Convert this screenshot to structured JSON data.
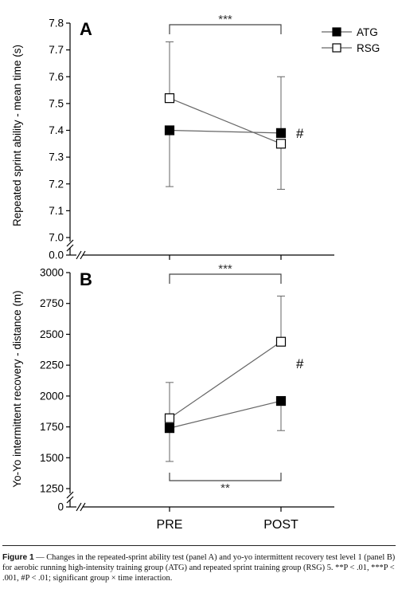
{
  "chart_data": [
    {
      "type": "line",
      "panel_label": "A",
      "ylabel": "Repeated sprint ability - mean time (s)",
      "categories": [
        "PRE",
        "POST"
      ],
      "ylim": [
        7.0,
        7.8
      ],
      "yticks": [
        "7.8",
        "7.7",
        "7.6",
        "7.5",
        "7.4",
        "7.3",
        "7.2",
        "7.1",
        "7.0"
      ],
      "ytick_values": [
        7.8,
        7.7,
        7.6,
        7.5,
        7.4,
        7.3,
        7.2,
        7.1,
        7.0
      ],
      "axis_break_zero_label": "0.0",
      "series": [
        {
          "name": "ATG",
          "marker": "filled-square",
          "values": [
            7.4,
            7.39
          ],
          "error_low": [
            7.19,
            null
          ],
          "error_high": [
            null,
            7.6
          ]
        },
        {
          "name": "RSG",
          "marker": "open-square",
          "values": [
            7.52,
            7.35
          ],
          "error_low": [
            null,
            7.18
          ],
          "error_high": [
            7.73,
            null
          ]
        }
      ],
      "legend": {
        "position": "top-right",
        "entries": [
          "ATG",
          "RSG"
        ]
      },
      "annotations": [
        {
          "text": "***",
          "type": "bracket-top"
        },
        {
          "text": "#",
          "type": "post-label"
        }
      ]
    },
    {
      "type": "line",
      "panel_label": "B",
      "ylabel": "Yo-Yo intermittent recovery - distance (m)",
      "categories": [
        "PRE",
        "POST"
      ],
      "xlabels": [
        "PRE",
        "POST"
      ],
      "ylim": [
        1250,
        3000
      ],
      "yticks": [
        "3000",
        "2750",
        "2500",
        "2250",
        "2000",
        "1750",
        "1500",
        "1250"
      ],
      "ytick_values": [
        3000,
        2750,
        2500,
        2250,
        2000,
        1750,
        1500,
        1250
      ],
      "axis_break_zero_label": "0",
      "series": [
        {
          "name": "ATG",
          "marker": "filled-square",
          "values": [
            1740,
            1960
          ],
          "error_low": [
            1470,
            1720
          ],
          "error_high": [
            null,
            null
          ]
        },
        {
          "name": "RSG",
          "marker": "open-square",
          "values": [
            1820,
            2440
          ],
          "error_low": [
            null,
            null
          ],
          "error_high": [
            2110,
            2810
          ]
        }
      ],
      "annotations": [
        {
          "text": "***",
          "type": "bracket-top"
        },
        {
          "text": "**",
          "type": "bracket-bottom"
        },
        {
          "text": "#",
          "type": "post-label"
        }
      ]
    }
  ],
  "caption": {
    "label": "Figure 1",
    "text": " — Changes in the repeated-sprint ability test (panel A) and yo-yo intermittent recovery test level 1 (panel B) for aerobic running high-intensity training group (ATG) and repeated sprint training group (RSG) 5. **P < .01, ***P < .001, #P < .01; significant group × time interaction."
  }
}
